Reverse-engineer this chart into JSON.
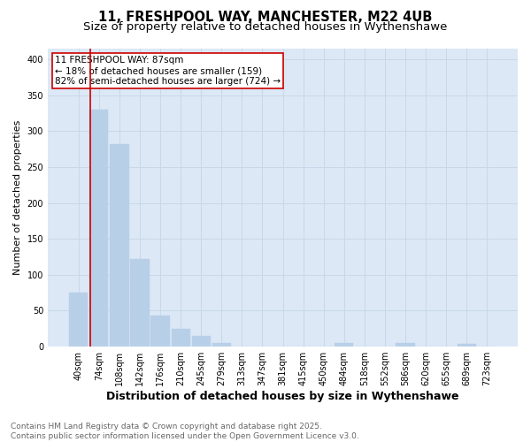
{
  "title_line1": "11, FRESHPOOL WAY, MANCHESTER, M22 4UB",
  "title_line2": "Size of property relative to detached houses in Wythenshawe",
  "xlabel": "Distribution of detached houses by size in Wythenshawe",
  "ylabel": "Number of detached properties",
  "categories": [
    "40sqm",
    "74sqm",
    "108sqm",
    "142sqm",
    "176sqm",
    "210sqm",
    "245sqm",
    "279sqm",
    "313sqm",
    "347sqm",
    "381sqm",
    "415sqm",
    "450sqm",
    "484sqm",
    "518sqm",
    "552sqm",
    "586sqm",
    "620sqm",
    "655sqm",
    "689sqm",
    "723sqm"
  ],
  "values": [
    75,
    330,
    282,
    122,
    43,
    25,
    15,
    5,
    0,
    0,
    0,
    0,
    0,
    5,
    0,
    0,
    5,
    0,
    0,
    4,
    0
  ],
  "bar_color": "#b8cfe8",
  "bar_edge_color": "#b8cfe8",
  "vline_color": "#cc0000",
  "vline_x": 0.575,
  "annotation_text": "11 FRESHPOOL WAY: 87sqm\n← 18% of detached houses are smaller (159)\n82% of semi-detached houses are larger (724) →",
  "annotation_box_facecolor": "#ffffff",
  "annotation_box_edgecolor": "#cc0000",
  "ylim": [
    0,
    415
  ],
  "yticks": [
    0,
    50,
    100,
    150,
    200,
    250,
    300,
    350,
    400
  ],
  "grid_color": "#c8d8e8",
  "background_color": "#dce8f5",
  "footer": "Contains HM Land Registry data © Crown copyright and database right 2025.\nContains public sector information licensed under the Open Government Licence v3.0.",
  "title_fontsize": 10.5,
  "subtitle_fontsize": 9.5,
  "xlabel_fontsize": 9,
  "ylabel_fontsize": 8,
  "tick_label_fontsize": 7,
  "annotation_fontsize": 7.5,
  "footer_fontsize": 6.5
}
